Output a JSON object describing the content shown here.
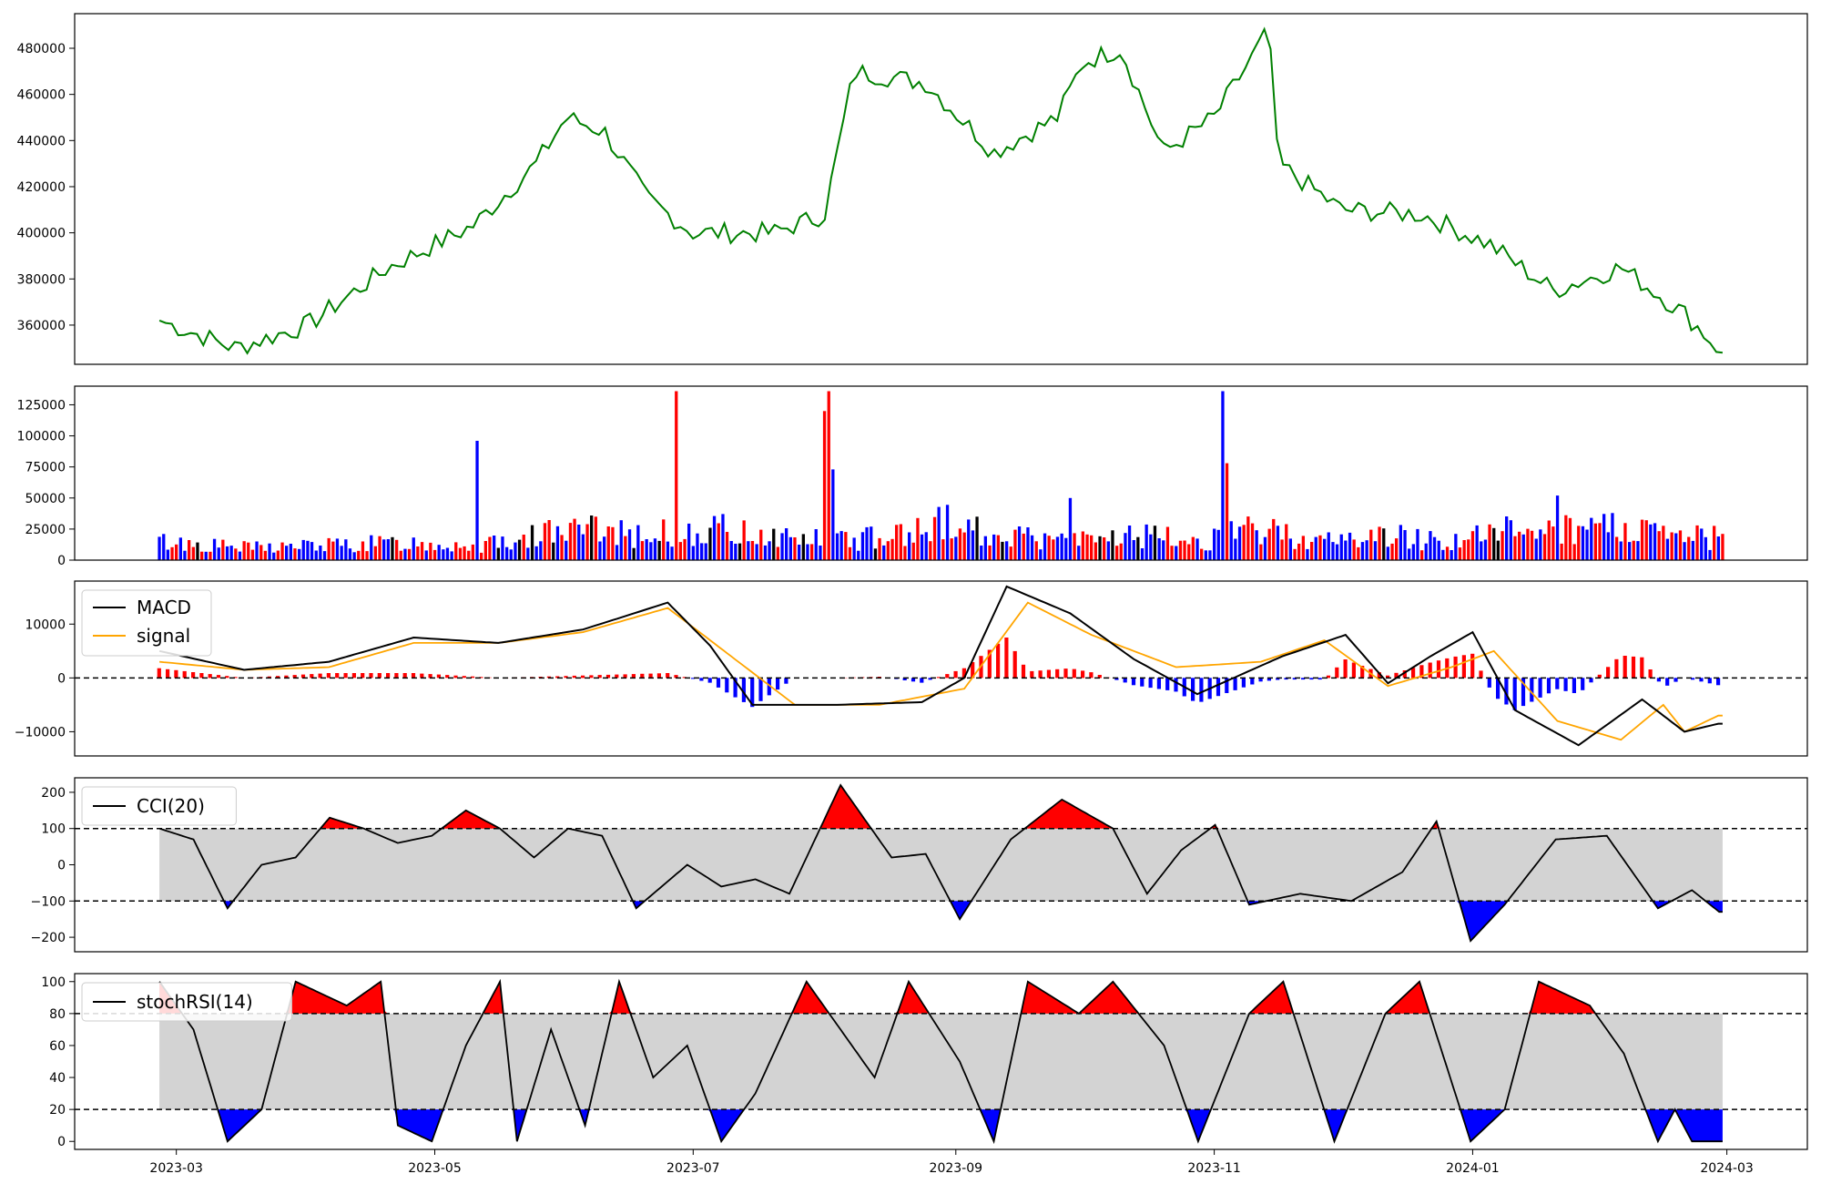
{
  "chart_data": [
    {
      "type": "line",
      "panel": "price",
      "x": [
        "2023-02-25",
        "2023-03-15",
        "2023-04-01",
        "2023-04-20",
        "2023-05-10",
        "2023-05-25",
        "2023-06-01",
        "2023-06-10",
        "2023-06-20",
        "2023-07-01",
        "2023-07-20",
        "2023-08-01",
        "2023-08-08",
        "2023-08-25",
        "2023-09-10",
        "2023-09-25",
        "2023-10-01",
        "2023-10-10",
        "2023-10-20",
        "2023-11-01",
        "2023-11-14",
        "2023-11-16",
        "2023-12-01",
        "2023-12-20",
        "2024-01-05",
        "2024-01-20",
        "2024-02-05",
        "2024-02-20",
        "2024-02-29"
      ],
      "series": [
        {
          "values": [
            362000,
            350000,
            360000,
            385000,
            403000,
            430000,
            450000,
            444000,
            415000,
            400000,
            400000,
            408000,
            470000,
            465000,
            435000,
            450000,
            474000,
            480000,
            435000,
            450000,
            488000,
            430000,
            410000,
            408000,
            395000,
            375000,
            385000,
            365000,
            348000
          ],
          "color": "#008000"
        }
      ],
      "yticks": [
        "360000",
        "380000",
        "400000",
        "420000",
        "440000",
        "460000",
        "480000"
      ],
      "ylim": [
        343000,
        495000
      ],
      "grid": false
    },
    {
      "type": "bar",
      "panel": "volume",
      "x_range": [
        "2023-02-25",
        "2024-02-29"
      ],
      "keypoints": [
        [
          0,
          15000
        ],
        [
          20,
          10000
        ],
        [
          40,
          12000
        ],
        [
          60,
          14000
        ],
        [
          75,
          12000
        ],
        [
          90,
          22000
        ],
        [
          105,
          25000
        ],
        [
          115,
          20000
        ],
        [
          130,
          25000
        ],
        [
          145,
          20000
        ],
        [
          160,
          15000
        ],
        [
          175,
          20000
        ],
        [
          185,
          30000
        ],
        [
          200,
          20000
        ],
        [
          215,
          15000
        ],
        [
          230,
          20000
        ],
        [
          245,
          15000
        ],
        [
          260,
          25000
        ],
        [
          275,
          15000
        ],
        [
          290,
          20000
        ],
        [
          305,
          15000
        ],
        [
          320,
          25000
        ],
        [
          345,
          25000
        ],
        [
          360,
          18000
        ]
      ],
      "spikes": [
        [
          75,
          96000
        ],
        [
          122,
          136000
        ],
        [
          157,
          120000
        ],
        [
          158,
          136000
        ],
        [
          159,
          73000
        ],
        [
          215,
          50000
        ],
        [
          251,
          136000
        ],
        [
          252,
          78000
        ],
        [
          330,
          52000
        ]
      ],
      "colors": {
        "up": "#ff0000",
        "down": "#0000ff",
        "flat": "#000000"
      },
      "yticks": [
        "0",
        "25000",
        "50000",
        "75000",
        "100000",
        "125000"
      ],
      "ylim": [
        0,
        140000
      ]
    },
    {
      "type": "line",
      "panel": "macd",
      "x_range": [
        "2023-02-25",
        "2024-02-29"
      ],
      "series": [
        {
          "name": "MACD",
          "color": "#000000",
          "keypoints": [
            [
              0,
              5000
            ],
            [
              20,
              1500
            ],
            [
              40,
              3000
            ],
            [
              60,
              7500
            ],
            [
              80,
              6500
            ],
            [
              100,
              9000
            ],
            [
              120,
              14000
            ],
            [
              130,
              6000
            ],
            [
              140,
              -5000
            ],
            [
              160,
              -5000
            ],
            [
              180,
              -4500
            ],
            [
              190,
              0
            ],
            [
              200,
              17000
            ],
            [
              215,
              12000
            ],
            [
              230,
              3500
            ],
            [
              245,
              -3000
            ],
            [
              265,
              4000
            ],
            [
              280,
              8000
            ],
            [
              290,
              -1000
            ],
            [
              300,
              4000
            ],
            [
              310,
              8500
            ],
            [
              320,
              -6000
            ],
            [
              335,
              -12500
            ],
            [
              350,
              -4000
            ],
            [
              360,
              -10000
            ],
            [
              368,
              -8500
            ]
          ]
        },
        {
          "name": "signal",
          "color": "#ffa500",
          "keypoints": [
            [
              0,
              3000
            ],
            [
              20,
              1500
            ],
            [
              40,
              2000
            ],
            [
              60,
              6500
            ],
            [
              80,
              6500
            ],
            [
              100,
              8500
            ],
            [
              120,
              13000
            ],
            [
              135,
              4000
            ],
            [
              150,
              -5000
            ],
            [
              170,
              -5000
            ],
            [
              190,
              -2000
            ],
            [
              205,
              14000
            ],
            [
              220,
              8000
            ],
            [
              240,
              2000
            ],
            [
              260,
              3000
            ],
            [
              275,
              7000
            ],
            [
              290,
              -1500
            ],
            [
              305,
              2000
            ],
            [
              315,
              5000
            ],
            [
              330,
              -8000
            ],
            [
              345,
              -11500
            ],
            [
              355,
              -5000
            ],
            [
              360,
              -10000
            ],
            [
              368,
              -7000
            ]
          ]
        }
      ],
      "hist_colors": {
        "pos": "#ff0000",
        "neg": "#0000ff"
      },
      "yticks": [
        "−10000",
        "0",
        "10000"
      ],
      "ylim": [
        -14500,
        18000
      ]
    },
    {
      "type": "line",
      "panel": "cci",
      "x_range": [
        "2023-02-25",
        "2024-02-29"
      ],
      "series": [
        {
          "name": "CCI(20)",
          "color": "#000000",
          "keypoints": [
            [
              0,
              100
            ],
            [
              10,
              70
            ],
            [
              20,
              -120
            ],
            [
              30,
              0
            ],
            [
              40,
              20
            ],
            [
              50,
              130
            ],
            [
              60,
              100
            ],
            [
              70,
              60
            ],
            [
              80,
              80
            ],
            [
              90,
              150
            ],
            [
              100,
              100
            ],
            [
              110,
              20
            ],
            [
              120,
              100
            ],
            [
              130,
              80
            ],
            [
              140,
              -120
            ],
            [
              155,
              0
            ],
            [
              165,
              -60
            ],
            [
              175,
              -40
            ],
            [
              185,
              -80
            ],
            [
              200,
              220
            ],
            [
              215,
              20
            ],
            [
              225,
              30
            ],
            [
              235,
              -150
            ],
            [
              250,
              70
            ],
            [
              265,
              180
            ],
            [
              280,
              100
            ],
            [
              290,
              -80
            ],
            [
              300,
              40
            ],
            [
              310,
              110
            ],
            [
              320,
              -110
            ],
            [
              335,
              -80
            ],
            [
              350,
              -100
            ],
            [
              365,
              -20
            ],
            [
              375,
              120
            ],
            [
              385,
              -210
            ],
            [
              395,
              -110
            ],
            [
              410,
              70
            ],
            [
              425,
              80
            ],
            [
              440,
              -120
            ],
            [
              450,
              -70
            ],
            [
              458,
              -130
            ]
          ]
        }
      ],
      "fill_colors": {
        "band": "#d3d3d3",
        "overbought": "#ff0000",
        "oversold": "#0000ff"
      },
      "levels": [
        100,
        -100
      ],
      "yticks": [
        "−200",
        "−100",
        "0",
        "100",
        "200"
      ],
      "ylim": [
        -240,
        240
      ]
    },
    {
      "type": "line",
      "panel": "stochrsi",
      "x_range": [
        "2023-02-25",
        "2024-02-29"
      ],
      "series": [
        {
          "name": "stochRSI(14)",
          "color": "#000000",
          "keypoints": [
            [
              0,
              100
            ],
            [
              10,
              70
            ],
            [
              20,
              0
            ],
            [
              30,
              20
            ],
            [
              40,
              100
            ],
            [
              55,
              85
            ],
            [
              65,
              100
            ],
            [
              70,
              10
            ],
            [
              80,
              0
            ],
            [
              90,
              60
            ],
            [
              100,
              100
            ],
            [
              105,
              0
            ],
            [
              115,
              70
            ],
            [
              125,
              10
            ],
            [
              135,
              100
            ],
            [
              145,
              40
            ],
            [
              155,
              60
            ],
            [
              165,
              0
            ],
            [
              175,
              30
            ],
            [
              190,
              100
            ],
            [
              200,
              70
            ],
            [
              210,
              40
            ],
            [
              220,
              100
            ],
            [
              235,
              50
            ],
            [
              245,
              0
            ],
            [
              255,
              100
            ],
            [
              270,
              80
            ],
            [
              280,
              100
            ],
            [
              295,
              60
            ],
            [
              305,
              0
            ],
            [
              320,
              80
            ],
            [
              330,
              100
            ],
            [
              345,
              0
            ],
            [
              360,
              80
            ],
            [
              370,
              100
            ],
            [
              385,
              0
            ],
            [
              395,
              20
            ],
            [
              405,
              100
            ],
            [
              420,
              85
            ],
            [
              430,
              55
            ],
            [
              440,
              0
            ],
            [
              445,
              20
            ],
            [
              450,
              0
            ]
          ]
        }
      ],
      "fill_colors": {
        "band": "#d3d3d3",
        "overbought": "#ff0000",
        "oversold": "#0000ff"
      },
      "levels": [
        80,
        20
      ],
      "yticks": [
        "0",
        "20",
        "40",
        "60",
        "80",
        "100"
      ],
      "ylim": [
        -5,
        105
      ]
    }
  ],
  "xaxis": {
    "ticks": [
      "2023-03",
      "2023-05",
      "2023-07",
      "2023-09",
      "2023-11",
      "2024-01",
      "2024-03"
    ],
    "range": [
      "2023-02-05",
      "2024-03-20"
    ]
  },
  "legends": {
    "macd": [
      "MACD",
      "signal"
    ],
    "cci": [
      "CCI(20)"
    ],
    "stochrsi": [
      "stochRSI(14)"
    ]
  }
}
